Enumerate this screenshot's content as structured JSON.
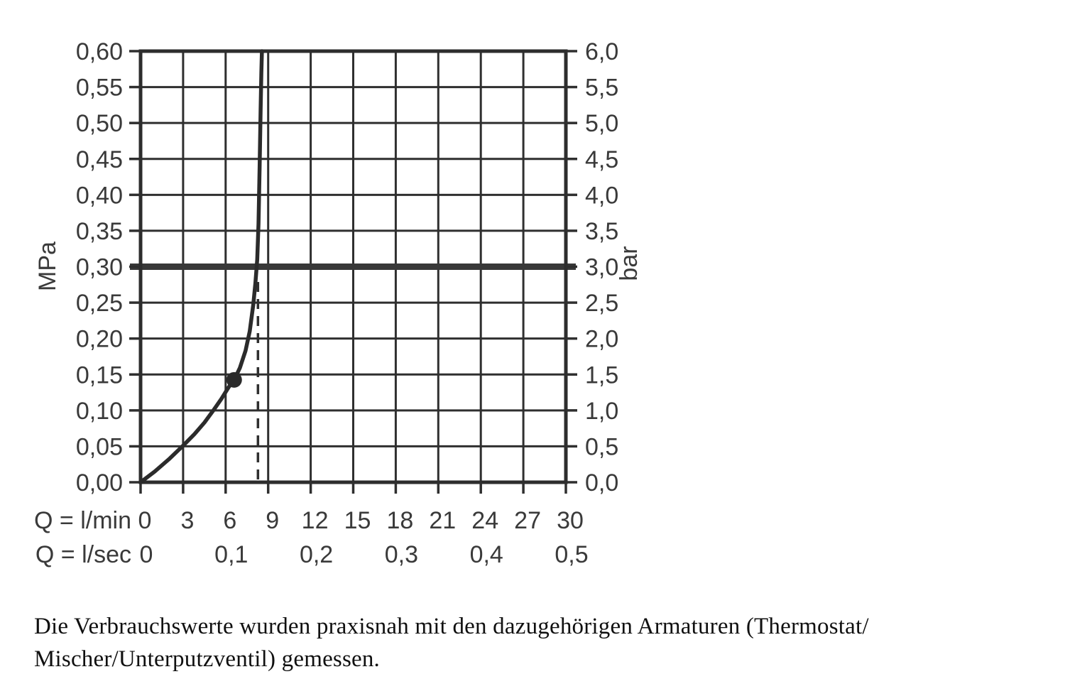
{
  "caption": {
    "line1": "Die Verbrauchswerte wurden praxisnah mit den dazugehörigen Armaturen (Thermostat/",
    "line2": "Mischer/Unterputzventil) gemessen."
  },
  "chart_data": {
    "type": "line",
    "title": "",
    "x_axis": {
      "primary_label": "Q = l/min",
      "primary_ticks": [
        0,
        3,
        6,
        9,
        12,
        15,
        18,
        21,
        24,
        27,
        30
      ],
      "secondary_label": "Q = l/sec",
      "secondary_ticks": [
        {
          "label": "0",
          "at_lmin": 0
        },
        {
          "label": "0,1",
          "at_lmin": 6
        },
        {
          "label": "0,2",
          "at_lmin": 12
        },
        {
          "label": "0,3",
          "at_lmin": 18
        },
        {
          "label": "0,4",
          "at_lmin": 24
        },
        {
          "label": "0,5",
          "at_lmin": 30
        }
      ],
      "range_lmin": [
        0,
        30
      ],
      "grid_step_lmin": 3
    },
    "y_axis_left": {
      "unit": "MPa",
      "tick_labels": [
        "0,00",
        "0,05",
        "0,10",
        "0,15",
        "0,20",
        "0,25",
        "0,30",
        "0,35",
        "0,40",
        "0,45",
        "0,50",
        "0,55",
        "0,60"
      ],
      "tick_values": [
        0,
        0.05,
        0.1,
        0.15,
        0.2,
        0.25,
        0.3,
        0.35,
        0.4,
        0.45,
        0.5,
        0.55,
        0.6
      ],
      "range_mpa": [
        0,
        0.6
      ]
    },
    "y_axis_right": {
      "unit": "bar",
      "tick_labels": [
        "0,0",
        "0,5",
        "1,0",
        "1,5",
        "2,0",
        "2,5",
        "3,0",
        "3,5",
        "4,0",
        "4,5",
        "5,0",
        "5,5",
        "6,0"
      ],
      "tick_values": [
        0,
        0.5,
        1.0,
        1.5,
        2.0,
        2.5,
        3.0,
        3.5,
        4.0,
        4.5,
        5.0,
        5.5,
        6.0
      ],
      "range_bar": [
        0,
        6.0
      ]
    },
    "grid": {
      "visible": true
    },
    "series": [
      {
        "name": "flow-pressure-curve",
        "points_lmin_mpa": [
          [
            0,
            0
          ],
          [
            1,
            0.015
          ],
          [
            2,
            0.032
          ],
          [
            3,
            0.051
          ],
          [
            3.8,
            0.067
          ],
          [
            4.5,
            0.083
          ],
          [
            5.1,
            0.099
          ],
          [
            5.7,
            0.116
          ],
          [
            6.2,
            0.132
          ],
          [
            6.6,
            0.1425
          ],
          [
            7.0,
            0.159
          ],
          [
            7.4,
            0.183
          ],
          [
            7.7,
            0.21
          ],
          [
            7.95,
            0.247
          ],
          [
            8.1,
            0.277
          ],
          [
            8.23,
            0.31
          ],
          [
            8.32,
            0.36
          ],
          [
            8.4,
            0.44
          ],
          [
            8.47,
            0.52
          ],
          [
            8.52,
            0.57
          ],
          [
            8.56,
            0.6
          ]
        ]
      }
    ],
    "marker_point": {
      "lmin": 6.6,
      "mpa": 0.1425
    },
    "reference_line": {
      "mpa": 0.3,
      "bar": 3.0,
      "style": "thick-horizontal"
    },
    "dashed_guide": {
      "lmin": 8.28,
      "from_mpa": 0,
      "to_mpa": 0.287
    },
    "colors": {
      "grid": "#2f2f2f",
      "border": "#2d2d2d",
      "curve": "#2b2b2b",
      "reference_line": "#383838",
      "label": "#3a3a3a"
    }
  }
}
